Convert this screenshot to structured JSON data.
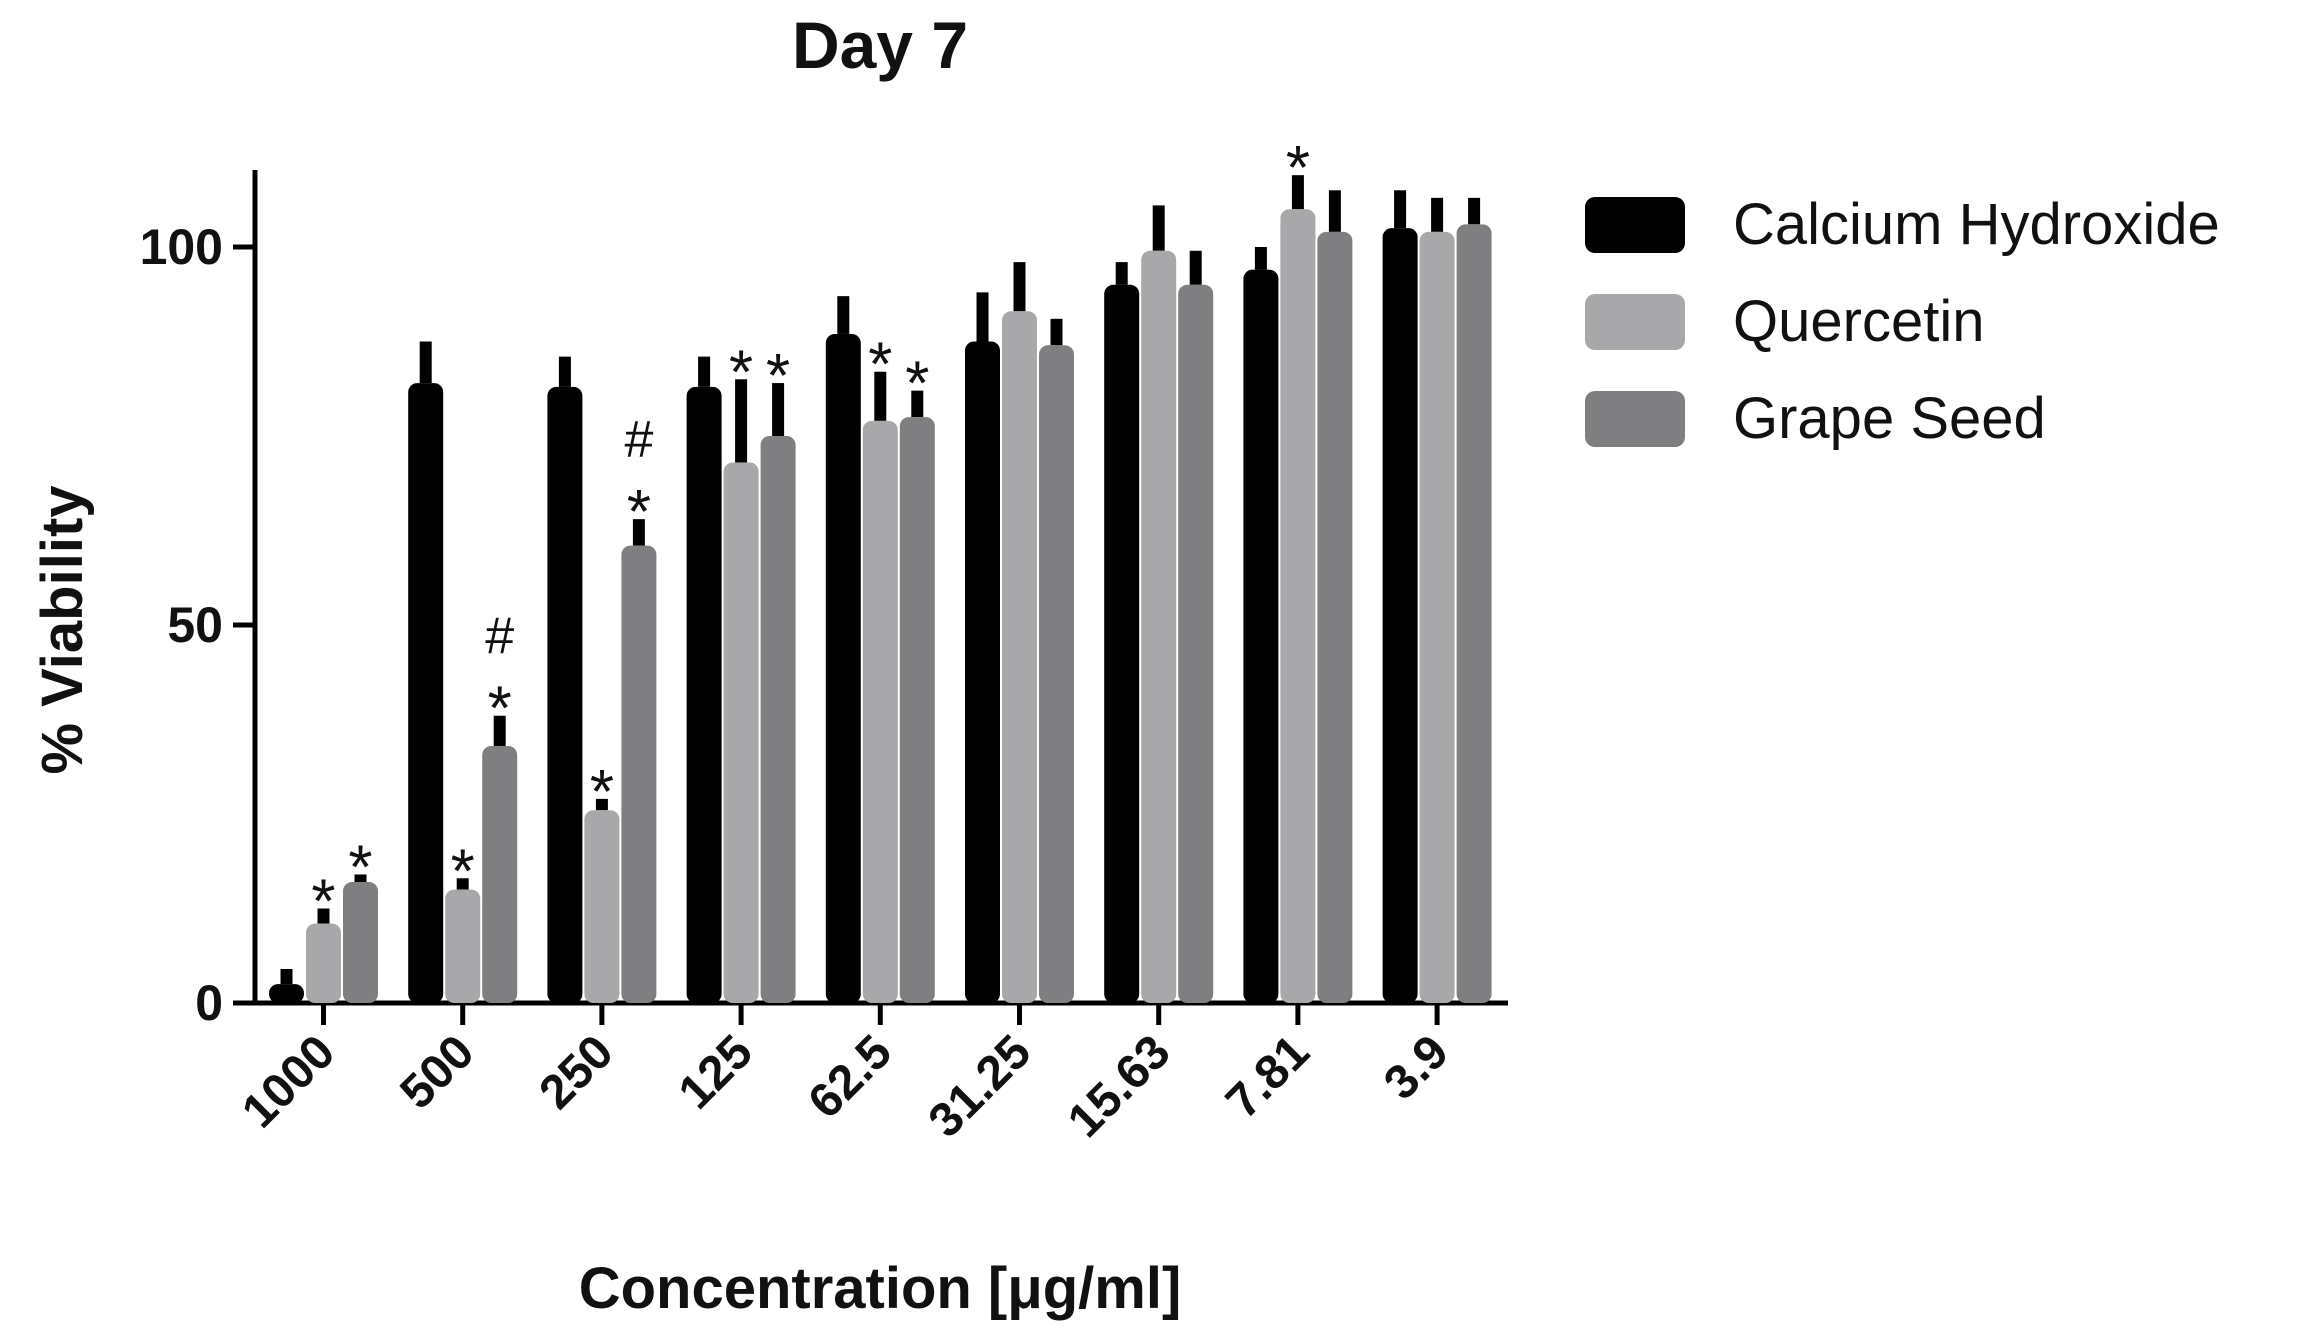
{
  "chart_data": {
    "type": "bar",
    "title": "Day 7",
    "xlabel": "Concentration [μg/ml]",
    "ylabel": "% Viability",
    "ylim": [
      0,
      110
    ],
    "yticks": [
      0,
      50,
      100
    ],
    "categories": [
      "1000",
      "500",
      "250",
      "125",
      "62.5",
      "31.25",
      "15.63",
      "7.81",
      "3.9"
    ],
    "series": [
      {
        "name": "Calcium Hydroxide",
        "color": "#000000",
        "values": [
          2.5,
          82,
          81.5,
          81.5,
          88.5,
          87.5,
          95,
          97,
          102.5
        ],
        "errors": [
          2,
          5.5,
          4,
          4,
          5,
          6.5,
          3,
          3,
          5
        ]
      },
      {
        "name": "Quercetin",
        "color": "#a8a8aa",
        "values": [
          10.5,
          15,
          25.5,
          71.5,
          77,
          91.5,
          99.5,
          105,
          102
        ],
        "errors": [
          2,
          1.5,
          1.5,
          11,
          6.5,
          6.5,
          6,
          4.5,
          4.5
        ]
      },
      {
        "name": "Grape Seed",
        "color": "#7f7f81",
        "values": [
          16,
          34,
          60.5,
          75,
          77.5,
          87,
          95,
          102,
          103
        ],
        "errors": [
          1,
          4,
          3.5,
          7,
          3.5,
          3.5,
          4.5,
          5.5,
          3.5
        ]
      }
    ],
    "annotations": [
      {
        "category": 0,
        "series": 1,
        "text": "*"
      },
      {
        "category": 0,
        "series": 2,
        "text": "*"
      },
      {
        "category": 1,
        "series": 1,
        "text": "*"
      },
      {
        "category": 1,
        "series": 2,
        "text": "*"
      },
      {
        "category": 1,
        "series": 2,
        "text": "#"
      },
      {
        "category": 2,
        "series": 1,
        "text": "*"
      },
      {
        "category": 2,
        "series": 2,
        "text": "*"
      },
      {
        "category": 2,
        "series": 2,
        "text": "#"
      },
      {
        "category": 3,
        "series": 1,
        "text": "*"
      },
      {
        "category": 3,
        "series": 2,
        "text": "*"
      },
      {
        "category": 4,
        "series": 1,
        "text": "*"
      },
      {
        "category": 4,
        "series": 2,
        "text": "*"
      },
      {
        "category": 7,
        "series": 1,
        "text": "*"
      }
    ],
    "legend_position": "right"
  }
}
